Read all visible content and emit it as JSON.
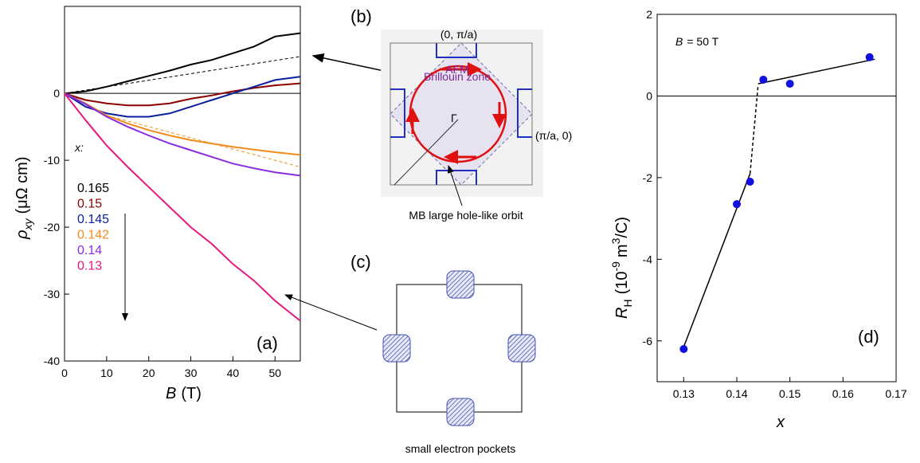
{
  "chart_data": [
    {
      "type": "line",
      "panel_label": "(a)",
      "x_label": "B",
      "x_label_unit": "(T)",
      "y_label": "ρ",
      "y_label_sub": "xy",
      "y_label_unit": "(μΩ cm)",
      "legend_title": "x:",
      "xlim": [
        0,
        56
      ],
      "xticks": [
        0,
        10,
        20,
        30,
        40,
        50
      ],
      "ylim": [
        -40,
        13
      ],
      "yticks": [
        0,
        -10,
        -20,
        -30,
        -40
      ],
      "zero_line": true,
      "x": [
        0,
        5,
        10,
        15,
        20,
        25,
        30,
        35,
        40,
        45,
        50,
        56
      ],
      "series": [
        {
          "name": "0.165",
          "color": "#000000",
          "values": [
            0,
            0.3,
            1,
            1.8,
            2.6,
            3.4,
            4.3,
            5,
            6,
            7,
            8.5,
            9
          ]
        },
        {
          "name": "0.15",
          "color": "#8b0000",
          "values": [
            0,
            -1,
            -1.5,
            -1.8,
            -1.8,
            -1.5,
            -0.8,
            -0.3,
            0.3,
            0.8,
            1.2,
            1.5
          ]
        },
        {
          "name": "0.145",
          "color": "#0a1f9a",
          "values": [
            0,
            -2,
            -3,
            -3.5,
            -3.5,
            -3,
            -2,
            -1,
            0,
            1,
            2,
            2.5
          ]
        },
        {
          "name": "0.142",
          "color": "#f28c1c",
          "values": [
            0,
            -1.5,
            -3.3,
            -4.5,
            -5.5,
            -6.3,
            -7,
            -7.5,
            -8,
            -8.4,
            -8.8,
            -9.2
          ]
        },
        {
          "name": "0.14",
          "color": "#8a2be2",
          "values": [
            0,
            -1.6,
            -3.5,
            -5,
            -6.3,
            -7.5,
            -8.5,
            -9.5,
            -10.5,
            -11.2,
            -11.8,
            -12.3
          ]
        },
        {
          "name": "0.13",
          "color": "#e8177d",
          "values": [
            0,
            -4,
            -7.8,
            -11,
            -14,
            -17,
            -20,
            -22.5,
            -25.5,
            -28,
            -31,
            -34
          ]
        }
      ],
      "guides": [
        {
          "color": "#000000",
          "x": [
            0,
            56
          ],
          "values": [
            0,
            5.5
          ]
        },
        {
          "color": "#f28c1c",
          "x": [
            10,
            56
          ],
          "values": [
            -3.3,
            -11
          ]
        }
      ]
    },
    {
      "type": "scatter",
      "panel_label": "(d)",
      "annotation_var": "B",
      "annotation_text": "= 50 T",
      "x_label": "x",
      "y_label": "R",
      "y_label_sub": "H",
      "y_label_unit": "(10",
      "y_label_exp": "-9",
      "y_label_unit2": "m",
      "y_label_exp2": "3",
      "y_label_unit3": "/C)",
      "xlim": [
        0.125,
        0.17
      ],
      "xticks": [
        0.13,
        0.14,
        0.15,
        0.16,
        0.17
      ],
      "ylim": [
        -7,
        2
      ],
      "yticks": [
        2,
        0,
        -2,
        -4,
        -6
      ],
      "zero_line": true,
      "color": "#1010e0",
      "x": [
        0.13,
        0.14,
        0.1425,
        0.145,
        0.15,
        0.165
      ],
      "values": [
        -6.2,
        -2.65,
        -2.1,
        0.4,
        0.3,
        0.95
      ],
      "fits": [
        {
          "dash": false,
          "x": [
            0.13,
            0.1425
          ],
          "values": [
            -6.15,
            -1.9
          ]
        },
        {
          "dash": true,
          "x": [
            0.1425,
            0.144
          ],
          "values": [
            -1.9,
            0.25
          ]
        },
        {
          "dash": false,
          "x": [
            0.144,
            0.166
          ],
          "values": [
            0.3,
            0.9
          ]
        }
      ]
    }
  ],
  "diagram_b": {
    "panel_label": "(b)",
    "top_label": "(0, π/a)",
    "zone_label_1": "AFM",
    "zone_label_2": "Brillouin zone",
    "right_label": "(π/a, 0)",
    "center_label": "Γ",
    "caption": "MB large hole-like orbit"
  },
  "diagram_c": {
    "panel_label": "(c)",
    "caption": "small electron pockets"
  }
}
